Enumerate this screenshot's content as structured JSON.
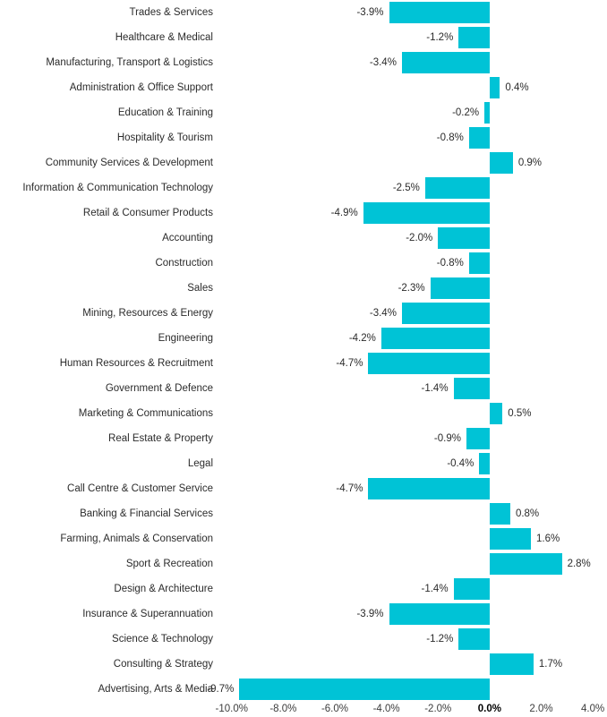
{
  "chart_data": {
    "type": "bar",
    "orientation": "horizontal",
    "title": "",
    "xlabel": "",
    "ylabel": "",
    "grid": false,
    "legend": false,
    "xlim": [
      -10.65,
      4.55
    ],
    "bar_color": "#00c3d6",
    "categories": [
      "Trades & Services",
      "Healthcare & Medical",
      "Manufacturing, Transport & Logistics",
      "Administration & Office Support",
      "Education & Training",
      "Hospitality & Tourism",
      "Community Services & Development",
      "Information & Communication Technology",
      "Retail & Consumer Products",
      "Accounting",
      "Construction",
      "Sales",
      "Mining, Resources & Energy",
      "Engineering",
      "Human Resources & Recruitment",
      "Government & Defence",
      "Marketing & Communications",
      "Real Estate & Property",
      "Legal",
      "Call Centre & Customer Service",
      "Banking & Financial Services",
      "Farming, Animals & Conservation",
      "Sport & Recreation",
      "Design & Architecture",
      "Insurance & Superannuation",
      "Science & Technology",
      "Consulting & Strategy",
      "Advertising, Arts & Media"
    ],
    "values": [
      -3.9,
      -1.2,
      -3.4,
      0.4,
      -0.2,
      -0.8,
      0.9,
      -2.5,
      -4.9,
      -2.0,
      -0.8,
      -2.3,
      -3.4,
      -4.2,
      -4.7,
      -1.4,
      0.5,
      -0.9,
      -0.4,
      -4.7,
      0.8,
      1.6,
      2.8,
      -1.4,
      -3.9,
      -1.2,
      1.7,
      -9.7
    ],
    "value_labels": [
      "-3.9%",
      "-1.2%",
      "-3.4%",
      "0.4%",
      "-0.2%",
      "-0.8%",
      "0.9%",
      "-2.5%",
      "-4.9%",
      "-2.0%",
      "-0.8%",
      "-2.3%",
      "-3.4%",
      "-4.2%",
      "-4.7%",
      "-1.4%",
      "0.5%",
      "-0.9%",
      "-0.4%",
      "-4.7%",
      "0.8%",
      "1.6%",
      "2.8%",
      "-1.4%",
      "-3.9%",
      "-1.2%",
      "1.7%",
      "-9.7%"
    ],
    "tick_values": [
      -10,
      -8,
      -6,
      -4,
      -2,
      0,
      2,
      4
    ],
    "tick_labels": [
      "-10.0%",
      "-8.0%",
      "-6.0%",
      "-4.0%",
      "-2.0%",
      "0.0%",
      "2.0%",
      "4.0%"
    ]
  }
}
